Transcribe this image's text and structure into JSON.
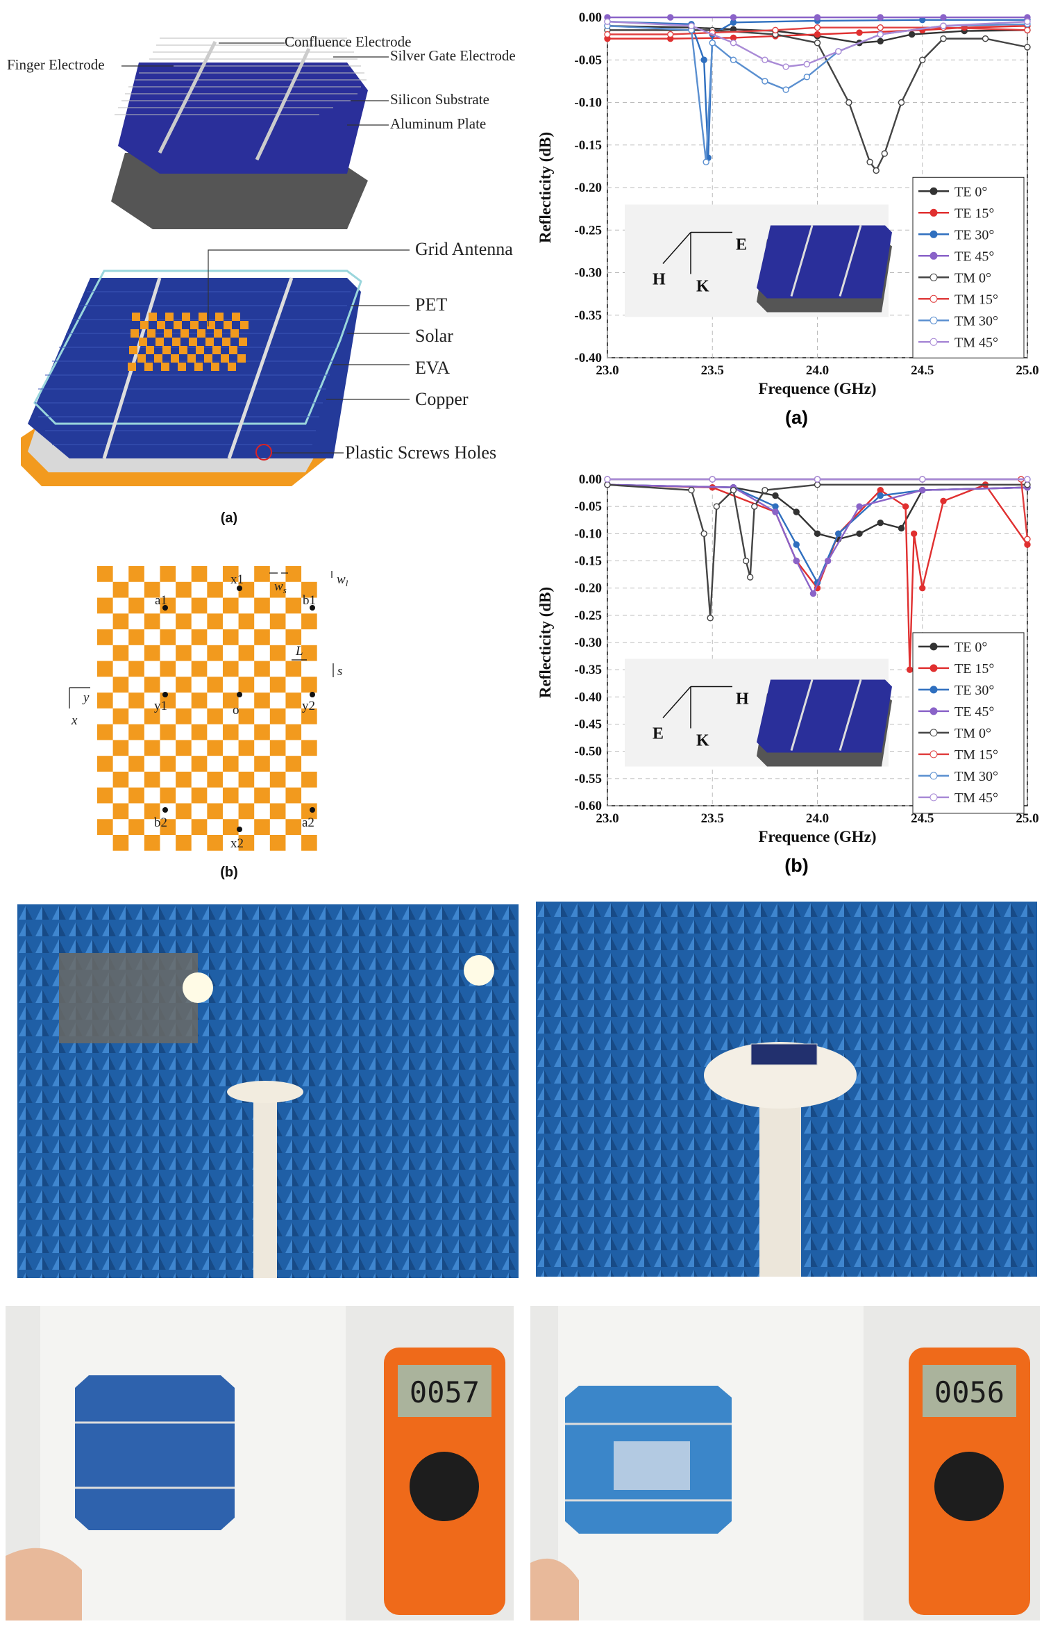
{
  "figure_top_left": {
    "labels": {
      "finger": "Finger Electrode",
      "confluence": "Confluence Electrode",
      "silver": "Silver Gate Electrode",
      "silicon": "Silicon Substrate",
      "aluminum": "Aluminum Plate",
      "grid": "Grid Antenna",
      "pet": "PET",
      "solar": "Solar",
      "eva": "EVA",
      "copper": "Copper",
      "screws": "Plastic Screws Holes"
    },
    "caption": "(a)"
  },
  "figure_grid": {
    "points": {
      "x1": "x1",
      "a1": "a1",
      "b1": "b1",
      "y1": "y1",
      "o": "o",
      "y2": "y2",
      "b2": "b2",
      "a2": "a2",
      "x2": "x2"
    },
    "dims": {
      "ws": "w",
      "ws_sub": "s",
      "wl": "w",
      "wl_sub": "l",
      "L": "L",
      "s": "s"
    },
    "axes": {
      "y": "y",
      "x": "x"
    },
    "caption": "(b)"
  },
  "chart_data": [
    {
      "type": "line",
      "xlabel": "Frequence (GHz)",
      "ylabel": "Reflecticity (dB)",
      "xlim": [
        23.0,
        25.0
      ],
      "ylim": [
        -0.4,
        0.0
      ],
      "xticks": [
        "23.0",
        "23.5",
        "24.0",
        "24.5",
        "25.0"
      ],
      "yticks": [
        "0.00",
        "-0.05",
        "-0.10",
        "-0.15",
        "-0.20",
        "-0.25",
        "-0.30",
        "-0.35",
        "-0.40"
      ],
      "grid": true,
      "legend_position": "right",
      "inset_axes": {
        "e": "E",
        "h": "H",
        "k": "K"
      },
      "caption": "(a)",
      "series": [
        {
          "name": "TE 0°",
          "color": "#333333",
          "marker": "square-filled",
          "x": [
            23.0,
            23.4,
            23.6,
            23.8,
            24.0,
            24.2,
            24.3,
            24.45,
            24.7,
            25.0
          ],
          "y": [
            -0.01,
            -0.012,
            -0.014,
            -0.016,
            -0.022,
            -0.03,
            -0.028,
            -0.02,
            -0.016,
            -0.015
          ]
        },
        {
          "name": "TE 15°",
          "color": "#e03030",
          "marker": "circle-filled",
          "x": [
            23.0,
            23.3,
            23.6,
            23.8,
            24.0,
            24.2,
            24.5,
            24.7,
            25.0
          ],
          "y": [
            -0.025,
            -0.025,
            -0.024,
            -0.022,
            -0.02,
            -0.018,
            -0.015,
            -0.012,
            -0.01
          ]
        },
        {
          "name": "TE 30°",
          "color": "#2f6fbf",
          "marker": "triangle-filled",
          "x": [
            23.0,
            23.4,
            23.46,
            23.48,
            23.5,
            23.6,
            24.0,
            24.5,
            25.0
          ],
          "y": [
            -0.005,
            -0.008,
            -0.05,
            -0.165,
            -0.02,
            -0.006,
            -0.004,
            -0.003,
            -0.003
          ]
        },
        {
          "name": "TE 45°",
          "color": "#8a63c8",
          "marker": "triangle-down-filled",
          "x": [
            23.0,
            23.3,
            23.6,
            24.0,
            24.3,
            24.6,
            25.0
          ],
          "y": [
            0.0,
            0.0,
            0.0,
            0.0,
            0.0,
            0.0,
            0.0
          ]
        },
        {
          "name": "TM 0°",
          "color": "#444444",
          "marker": "square-open",
          "x": [
            23.0,
            23.5,
            23.8,
            24.0,
            24.15,
            24.25,
            24.28,
            24.32,
            24.4,
            24.5,
            24.6,
            24.8,
            25.0
          ],
          "y": [
            -0.015,
            -0.015,
            -0.02,
            -0.03,
            -0.1,
            -0.17,
            -0.18,
            -0.16,
            -0.1,
            -0.05,
            -0.025,
            -0.025,
            -0.035
          ]
        },
        {
          "name": "TM 15°",
          "color": "#e04040",
          "marker": "circle-open",
          "x": [
            23.0,
            23.3,
            23.5,
            23.8,
            24.0,
            24.3,
            24.6,
            25.0
          ],
          "y": [
            -0.02,
            -0.02,
            -0.018,
            -0.015,
            -0.012,
            -0.012,
            -0.012,
            -0.015
          ]
        },
        {
          "name": "TM 30°",
          "color": "#5a8fd0",
          "marker": "triangle-open",
          "x": [
            23.0,
            23.4,
            23.47,
            23.5,
            23.6,
            23.75,
            23.85,
            23.95,
            24.1,
            24.3,
            24.6,
            25.0
          ],
          "y": [
            -0.01,
            -0.015,
            -0.17,
            -0.03,
            -0.05,
            -0.075,
            -0.085,
            -0.07,
            -0.04,
            -0.02,
            -0.01,
            -0.008
          ]
        },
        {
          "name": "TM 45°",
          "color": "#a98ad6",
          "marker": "triangle-down-open",
          "x": [
            23.0,
            23.4,
            23.6,
            23.75,
            23.85,
            23.95,
            24.1,
            24.3,
            24.6,
            25.0
          ],
          "y": [
            -0.005,
            -0.01,
            -0.03,
            -0.05,
            -0.058,
            -0.055,
            -0.04,
            -0.02,
            -0.01,
            -0.005
          ]
        }
      ]
    },
    {
      "type": "line",
      "xlabel": "Frequence (GHz)",
      "ylabel": "Reflecticity (dB)",
      "xlim": [
        23.0,
        25.0
      ],
      "ylim": [
        -0.6,
        0.0
      ],
      "xticks": [
        "23.0",
        "23.5",
        "24.0",
        "24.5",
        "25.0"
      ],
      "yticks": [
        "0.00",
        "-0.05",
        "-0.10",
        "-0.15",
        "-0.20",
        "-0.25",
        "-0.30",
        "-0.35",
        "-0.40",
        "-0.45",
        "-0.50",
        "-0.55",
        "-0.60"
      ],
      "grid": true,
      "legend_position": "right",
      "inset_axes": {
        "e": "E",
        "h": "H",
        "k": "K"
      },
      "caption": "(b)",
      "series": [
        {
          "name": "TE 0°",
          "color": "#333333",
          "marker": "square-filled",
          "x": [
            23.0,
            23.6,
            23.8,
            23.9,
            24.0,
            24.1,
            24.2,
            24.3,
            24.4,
            24.5,
            25.0
          ],
          "y": [
            -0.01,
            -0.015,
            -0.03,
            -0.06,
            -0.1,
            -0.11,
            -0.1,
            -0.08,
            -0.09,
            -0.02,
            -0.015
          ]
        },
        {
          "name": "TE 15°",
          "color": "#e03030",
          "marker": "circle-filled",
          "x": [
            23.0,
            23.5,
            23.8,
            23.9,
            24.0,
            24.1,
            24.3,
            24.42,
            24.44,
            24.46,
            24.5,
            24.6,
            24.8,
            25.0
          ],
          "y": [
            -0.01,
            -0.015,
            -0.06,
            -0.15,
            -0.2,
            -0.1,
            -0.02,
            -0.05,
            -0.35,
            -0.1,
            -0.2,
            -0.04,
            -0.01,
            -0.12
          ]
        },
        {
          "name": "TE 30°",
          "color": "#2f6fbf",
          "marker": "triangle-filled",
          "x": [
            23.0,
            23.6,
            23.8,
            23.9,
            24.0,
            24.1,
            24.3,
            24.5,
            25.0
          ],
          "y": [
            -0.01,
            -0.015,
            -0.05,
            -0.12,
            -0.19,
            -0.1,
            -0.03,
            -0.02,
            -0.015
          ]
        },
        {
          "name": "TE 45°",
          "color": "#8a63c8",
          "marker": "triangle-down-filled",
          "x": [
            23.0,
            23.6,
            23.8,
            23.9,
            23.98,
            24.05,
            24.2,
            24.5,
            25.0
          ],
          "y": [
            -0.01,
            -0.015,
            -0.06,
            -0.15,
            -0.21,
            -0.15,
            -0.05,
            -0.02,
            -0.015
          ]
        },
        {
          "name": "TM 0°",
          "color": "#444444",
          "marker": "square-open",
          "x": [
            23.0,
            23.4,
            23.46,
            23.49,
            23.52,
            23.6,
            23.66,
            23.68,
            23.7,
            23.75,
            24.0,
            25.0
          ],
          "y": [
            -0.01,
            -0.02,
            -0.1,
            -0.255,
            -0.05,
            -0.02,
            -0.15,
            -0.18,
            -0.05,
            -0.02,
            -0.01,
            -0.01
          ]
        },
        {
          "name": "TM 15°",
          "color": "#e04040",
          "marker": "circle-open",
          "x": [
            23.0,
            23.5,
            24.0,
            24.5,
            24.97,
            25.0
          ],
          "y": [
            0.0,
            0.0,
            0.0,
            0.0,
            0.0,
            -0.11
          ]
        },
        {
          "name": "TM 30°",
          "color": "#5a8fd0",
          "marker": "triangle-open",
          "x": [
            23.0,
            23.5,
            24.0,
            24.5,
            25.0
          ],
          "y": [
            0.0,
            0.0,
            0.0,
            0.0,
            0.0
          ]
        },
        {
          "name": "TM 45°",
          "color": "#a98ad6",
          "marker": "triangle-down-open",
          "x": [
            23.0,
            23.5,
            24.0,
            24.5,
            25.0
          ],
          "y": [
            0.0,
            0.0,
            0.0,
            0.0,
            0.0
          ]
        }
      ]
    }
  ],
  "photos": {
    "meter_left": "0057",
    "meter_right": "0056"
  }
}
